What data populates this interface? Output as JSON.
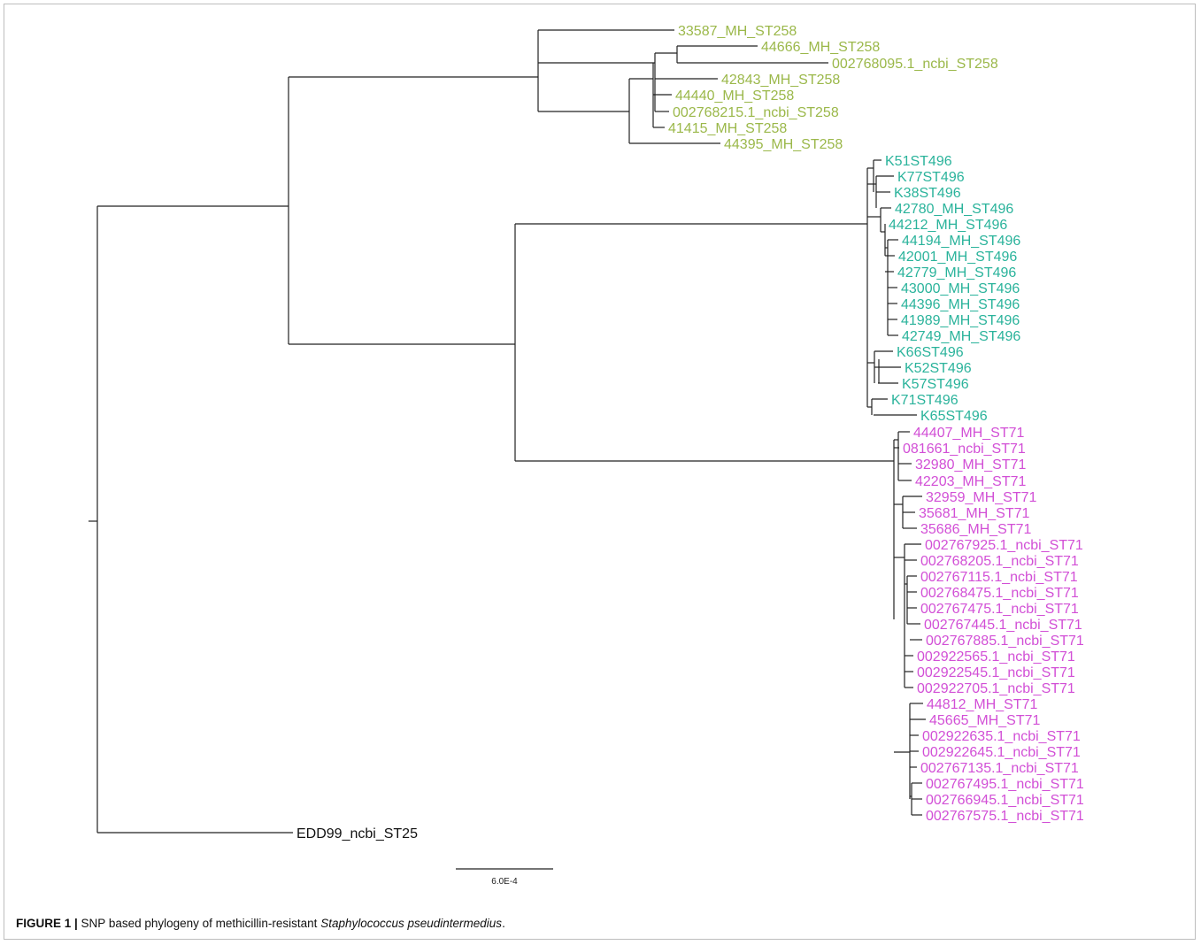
{
  "figure": {
    "label": "FIGURE 1 |",
    "caption_before": " SNP based phylogeny of methicillin-resistant ",
    "caption_italic": "Staphylococcus pseudintermedius",
    "caption_after": "."
  },
  "scale_bar": {
    "label": "6.0E-4"
  },
  "colors": {
    "ST258": "#9bb84a",
    "ST496": "#2ab39b",
    "ST71": "#d24fd6",
    "ST25": "#111111",
    "branch": "#222222"
  },
  "clades": [
    {
      "id": "ST258",
      "color_key": "ST258",
      "leaves": [
        "33587_MH_ST258",
        "44666_MH_ST258",
        "002768095.1_ncbi_ST258",
        "42843_MH_ST258",
        "44440_MH_ST258",
        "002768215.1_ncbi_ST258",
        "41415_MH_ST258",
        "44395_MH_ST258"
      ]
    },
    {
      "id": "ST496",
      "color_key": "ST496",
      "leaves": [
        "K51ST496",
        "K77ST496",
        "K38ST496",
        "42780_MH_ST496",
        "44212_MH_ST496",
        "44194_MH_ST496",
        "42001_MH_ST496",
        "42779_MH_ST496",
        "43000_MH_ST496",
        "44396_MH_ST496",
        "41989_MH_ST496",
        "42749_MH_ST496",
        "K66ST496",
        "K52ST496",
        "K57ST496",
        "K71ST496",
        "K65ST496"
      ]
    },
    {
      "id": "ST71",
      "color_key": "ST71",
      "leaves": [
        "44407_MH_ST71",
        "081661_ncbi_ST71",
        "32980_MH_ST71",
        "42203_MH_ST71",
        "32959_MH_ST71",
        "35681_MH_ST71",
        "35686_MH_ST71",
        "002767925.1_ncbi_ST71",
        "002768205.1_ncbi_ST71",
        "002767115.1_ncbi_ST71",
        "002768475.1_ncbi_ST71",
        "002767475.1_ncbi_ST71",
        "002767445.1_ncbi_ST71",
        "002767885.1_ncbi_ST71",
        "002922565.1_ncbi_ST71",
        "002922545.1_ncbi_ST71",
        "002922705.1_ncbi_ST71",
        "44812_MH_ST71",
        "45665_MH_ST71",
        "002922635.1_ncbi_ST71",
        "002922645.1_ncbi_ST71",
        "002767135.1_ncbi_ST71",
        "002767495.1_ncbi_ST71",
        "002766945.1_ncbi_ST71",
        "002767575.1_ncbi_ST71"
      ]
    },
    {
      "id": "ST25",
      "color_key": "ST25",
      "leaves": [
        "EDD99_ncbi_ST25"
      ]
    }
  ]
}
